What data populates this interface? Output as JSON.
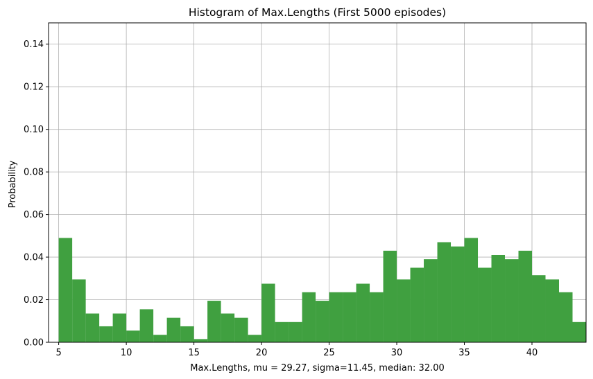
{
  "chart_data": {
    "type": "bar",
    "title": "Histogram of Max.Lengths (First 5000 episodes)",
    "xlabel": "Max.Lengths, mu = 29.27, sigma=11.45, median: 32.00",
    "ylabel": "Probability",
    "xlim": [
      4.25,
      44
    ],
    "ylim": [
      0,
      0.15
    ],
    "grid": true,
    "bar_color": "#40a040",
    "bin_width": 1,
    "x_ticks": [
      5,
      10,
      15,
      20,
      25,
      30,
      35,
      40
    ],
    "y_ticks": [
      0.0,
      0.02,
      0.04,
      0.06,
      0.08,
      0.1,
      0.12,
      0.14
    ],
    "y_tick_labels": [
      "0.00",
      "0.02",
      "0.04",
      "0.06",
      "0.08",
      "0.10",
      "0.12",
      "0.14"
    ],
    "bin_starts": [
      5,
      6,
      7,
      8,
      9,
      10,
      11,
      12,
      13,
      14,
      15,
      16,
      17,
      18,
      19,
      20,
      21,
      22,
      23,
      24,
      25,
      26,
      27,
      28,
      29,
      30,
      31,
      32,
      33,
      34,
      35,
      36,
      37,
      38,
      39,
      40,
      41,
      42,
      43,
      44
    ],
    "values": [
      0.049,
      0.0295,
      0.0135,
      0.0075,
      0.0135,
      0.0055,
      0.0155,
      0.0035,
      0.0115,
      0.0075,
      0.0015,
      0.0195,
      0.0135,
      0.0115,
      0.0035,
      0.0275,
      0.0095,
      0.0095,
      0.0235,
      0.0195,
      0.0235,
      0.0235,
      0.0275,
      0.0235,
      0.043,
      0.0295,
      0.035,
      0.039,
      0.047,
      0.045,
      0.049,
      0.035,
      0.041,
      0.039,
      0.043,
      0.0315,
      0.0295,
      0.0235,
      0.0095,
      0.0
    ]
  }
}
